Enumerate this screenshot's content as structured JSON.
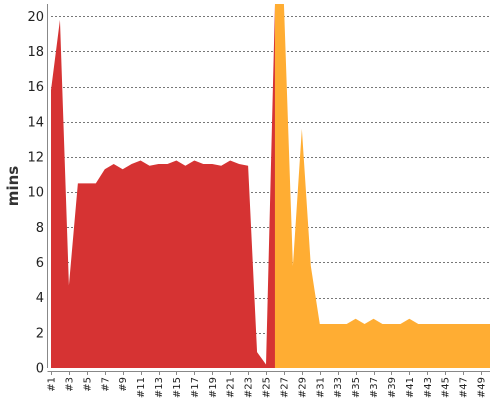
{
  "chart_data": {
    "type": "area",
    "title": "",
    "xlabel": "",
    "ylabel": "mins",
    "ylim": [
      0,
      20.7
    ],
    "y_ticks": [
      0,
      2,
      4,
      6,
      8,
      10,
      12,
      14,
      16,
      18,
      20
    ],
    "grid": true,
    "legend": "none",
    "categories": [
      "#1",
      "#2",
      "#3",
      "#4",
      "#5",
      "#6",
      "#7",
      "#8",
      "#9",
      "#10",
      "#11",
      "#12",
      "#13",
      "#14",
      "#15",
      "#16",
      "#17",
      "#18",
      "#19",
      "#20",
      "#21",
      "#22",
      "#23",
      "#24",
      "#25",
      "#26",
      "#27",
      "#28",
      "#29",
      "#30",
      "#31",
      "#32",
      "#33",
      "#34",
      "#35",
      "#36",
      "#37",
      "#38",
      "#39",
      "#40",
      "#41",
      "#42",
      "#43",
      "#44",
      "#45",
      "#46",
      "#47",
      "#48",
      "#49",
      "#50"
    ],
    "x_tick_labels": [
      "#1",
      "#3",
      "#5",
      "#7",
      "#9",
      "#11",
      "#13",
      "#15",
      "#17",
      "#19",
      "#21",
      "#23",
      "#25",
      "#27",
      "#29",
      "#31",
      "#33",
      "#35",
      "#37",
      "#39",
      "#41",
      "#43",
      "#45",
      "#47",
      "#49"
    ],
    "series": [
      {
        "color": "#d63333",
        "values": [
          15.8,
          19.8,
          4.7,
          10.5,
          10.5,
          10.5,
          11.3,
          11.6,
          11.3,
          11.6,
          11.8,
          11.5,
          11.6,
          11.6,
          11.8,
          11.5,
          11.8,
          11.6,
          11.6,
          11.5,
          11.8,
          11.6,
          11.5,
          0.9,
          0.2,
          20.7,
          null,
          null,
          null,
          null,
          null,
          null,
          null,
          null,
          null,
          null,
          null,
          null,
          null,
          null,
          null,
          null,
          null,
          null,
          null,
          null,
          null,
          null,
          null,
          null
        ]
      },
      {
        "color": "#ffad33",
        "values": [
          null,
          null,
          null,
          null,
          null,
          null,
          null,
          null,
          null,
          null,
          null,
          null,
          null,
          null,
          null,
          null,
          null,
          null,
          null,
          null,
          null,
          null,
          null,
          null,
          null,
          20.7,
          20.7,
          5.8,
          13.6,
          5.8,
          2.5,
          2.5,
          2.5,
          2.5,
          2.8,
          2.5,
          2.8,
          2.5,
          2.5,
          2.5,
          2.8,
          2.5,
          2.5,
          2.5,
          2.5,
          2.5,
          2.5,
          2.5,
          2.5,
          2.5
        ]
      }
    ]
  }
}
